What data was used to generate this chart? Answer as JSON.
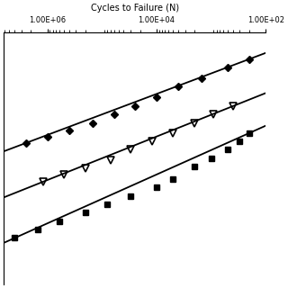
{
  "xlabel": "Cycles to Failure (N)",
  "background": "#ffffff",
  "xlim_log": [
    2,
    7
  ],
  "ylim": [
    460,
    760
  ],
  "sq_x": [
    200,
    300,
    500,
    1000,
    2000,
    5000,
    10000,
    30000,
    80000,
    200000,
    600000,
    1500000,
    4000000
  ],
  "sq_y": [
    580,
    590,
    600,
    610,
    620,
    635,
    645,
    655,
    665,
    675,
    685,
    695,
    705
  ],
  "tri_x": [
    400,
    900,
    2000,
    5000,
    12000,
    30000,
    70000,
    200000,
    500000,
    1200000
  ],
  "tri_y": [
    548,
    558,
    568,
    580,
    590,
    600,
    612,
    622,
    630,
    638
  ],
  "dia_x": [
    200,
    500,
    1500,
    4000,
    10000,
    25000,
    60000,
    150000,
    400000,
    1000000,
    2500000
  ],
  "dia_y": [
    492,
    502,
    515,
    525,
    537,
    548,
    558,
    568,
    577,
    585,
    592
  ],
  "line_x_log_start": 2.0,
  "line_x_log_end": 6.8,
  "sq_line_pts": [
    [
      200,
      580
    ],
    [
      4000000,
      705
    ]
  ],
  "tri_line_pts": [
    [
      400,
      548
    ],
    [
      1200000,
      638
    ]
  ],
  "dia_line_pts": [
    [
      200,
      492
    ],
    [
      2500000,
      592
    ]
  ]
}
